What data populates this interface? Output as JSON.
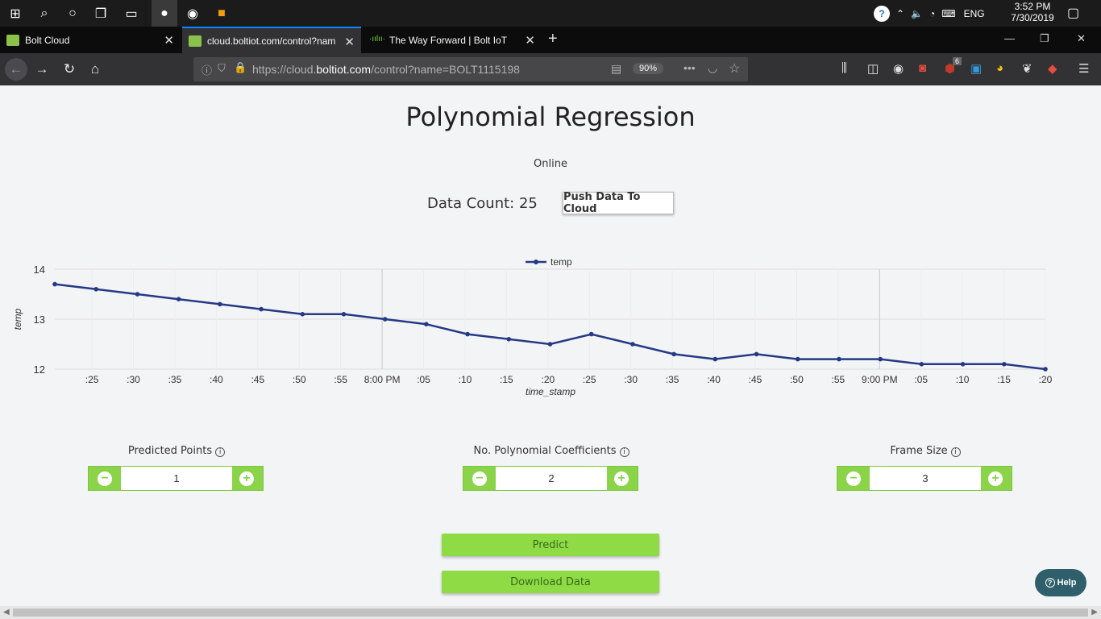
{
  "taskbar": {
    "clock_time": "3:52 PM",
    "clock_date": "7/30/2019",
    "lang": "ENG"
  },
  "tabs": [
    {
      "label": "Bolt Cloud"
    },
    {
      "label": "cloud.boltiot.com/control?nam"
    },
    {
      "label": "The Way Forward | Bolt IoT"
    }
  ],
  "urlbar": {
    "url_prefix": "https://cloud.",
    "url_domain": "boltiot.com",
    "url_suffix": "/control?name=BOLT1115198",
    "zoom": "90%",
    "badge_count": "6"
  },
  "page": {
    "title": "Polynomial Regression",
    "status": "Online",
    "data_count": "Data Count: 25",
    "push_button": "Push Data To Cloud"
  },
  "controls": [
    {
      "label": "Predicted Points",
      "value": "1"
    },
    {
      "label": "No. Polynomial Coefficients",
      "value": "2"
    },
    {
      "label": "Frame Size",
      "value": "3"
    }
  ],
  "buttons": {
    "predict": "Predict",
    "download": "Download Data",
    "help": "Help"
  },
  "chart_data": {
    "type": "line",
    "xlabel": "time_stamp",
    "ylabel": "temp",
    "series": [
      {
        "name": "temp",
        "color": "#253a85",
        "values": [
          13.7,
          13.6,
          13.5,
          13.4,
          13.3,
          13.2,
          13.1,
          13.1,
          13.0,
          12.9,
          12.7,
          12.6,
          12.5,
          12.7,
          12.5,
          12.3,
          12.2,
          12.3,
          12.2,
          12.2,
          12.2,
          12.1,
          12.1,
          12.1,
          12.0
        ]
      }
    ],
    "x_tick_labels": [
      ":25",
      ":30",
      ":35",
      ":40",
      ":45",
      ":50",
      ":55",
      "8:00 PM",
      ":05",
      ":10",
      ":15",
      ":20",
      ":25",
      ":30",
      ":35",
      ":40",
      ":45",
      ":50",
      ":55",
      "9:00 PM",
      ":05",
      ":10",
      ":15",
      ":20"
    ],
    "y_ticks": [
      12,
      13,
      14
    ],
    "ylim": [
      12,
      14
    ],
    "legend": "top-center",
    "grid": true
  }
}
